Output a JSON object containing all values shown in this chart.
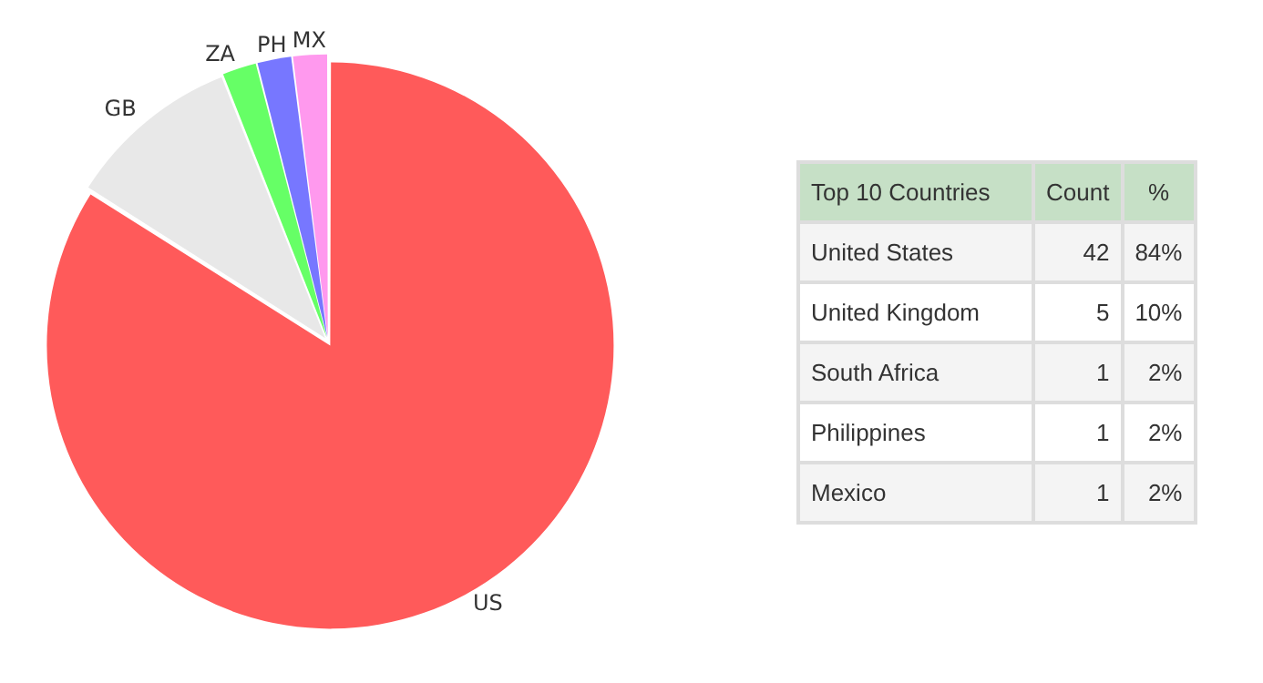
{
  "chart_data": [
    {
      "type": "pie",
      "categories": [
        "US",
        "GB",
        "ZA",
        "PH",
        "MX"
      ],
      "values": [
        84,
        10,
        2,
        2,
        2
      ],
      "colors": [
        "#ff5a5a",
        "#e8e8e8",
        "#66ff66",
        "#7777ff",
        "#ff99ee"
      ],
      "legend": false
    },
    {
      "type": "other",
      "title": "Top 10 Countries",
      "categories": [
        "United States",
        "United Kingdom",
        "South Africa",
        "Philippines",
        "Mexico"
      ],
      "values": [
        42,
        5,
        1,
        1,
        1
      ],
      "data_labels": true,
      "annotations": [
        "Count",
        "%",
        "84%",
        "10%",
        "2%",
        "2%",
        "2%"
      ]
    }
  ]
}
